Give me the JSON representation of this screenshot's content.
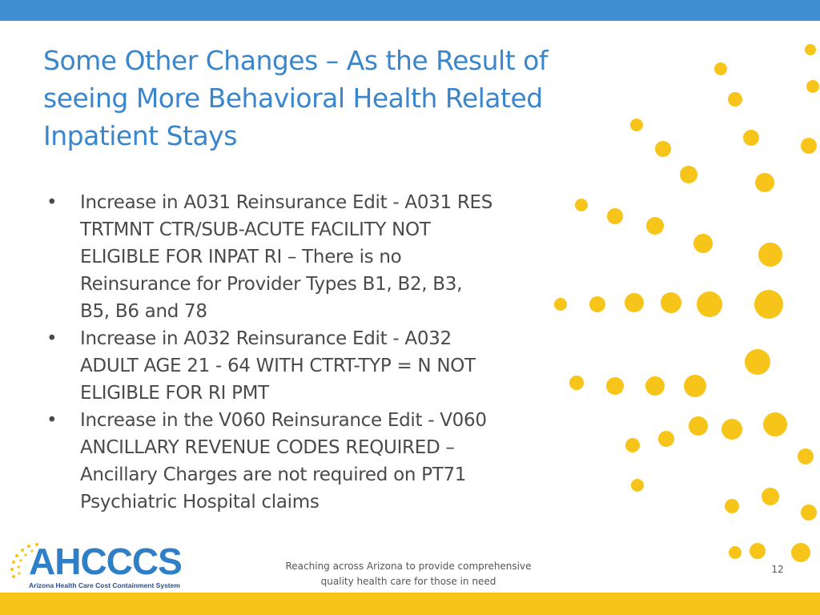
{
  "slide": {
    "title_lines": [
      "Some Other Changes – As the Result of",
      "seeing More Behavioral Health Related",
      "Inpatient Stays"
    ],
    "bullet_symbol": "•",
    "bullets": [
      {
        "lines": [
          "Increase in A031 Reinsurance Edit - A031 RES",
          "TRTMNT CTR/SUB-ACUTE FACILITY NOT",
          "ELIGIBLE FOR INPAT RI – There is no",
          "Reinsurance for Provider Types B1, B2, B3,",
          "B5, B6 and 78"
        ]
      },
      {
        "lines": [
          "Increase in A032 Reinsurance Edit - A032",
          "ADULT AGE 21 - 64 WITH CTRT-TYP = N NOT",
          "ELIGIBLE FOR RI PMT"
        ]
      },
      {
        "lines": [
          "Increase in the V060 Reinsurance Edit  - V060",
          "ANCILLARY REVENUE CODES REQUIRED –",
          "Ancillary Charges are not required on PT71",
          "Psychiatric Hospital claims"
        ]
      }
    ]
  },
  "footer": {
    "logo_text": "AHCCCS",
    "logo_subtitle": "Arizona Health Care Cost Containment System",
    "tagline_lines": [
      "Reaching across Arizona to provide comprehensive",
      "quality health care for those in need"
    ],
    "page_number": "12"
  },
  "colors": {
    "top_bar": "#3f8fd2",
    "bottom_bar": "#f7c41a",
    "title": "#3a86cc",
    "body_text": "#4a4a4a",
    "sun_dots": "#f7c41a"
  }
}
